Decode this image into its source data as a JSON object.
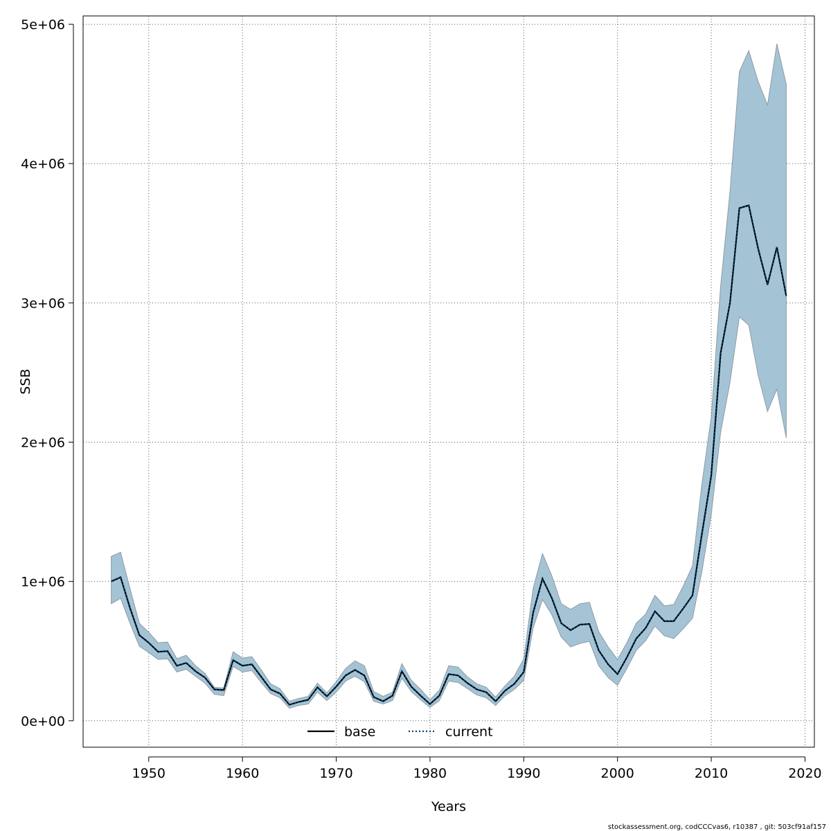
{
  "chart_data": {
    "type": "line",
    "xlabel": "Years",
    "ylabel": "SSB",
    "xlim": [
      1943,
      2021
    ],
    "ylim": [
      -190000,
      5060000
    ],
    "x_ticks": [
      1950,
      1960,
      1970,
      1980,
      1990,
      2000,
      2010,
      2020
    ],
    "x_tick_labels": [
      "1950",
      "1960",
      "1970",
      "1980",
      "1990",
      "2000",
      "2010",
      "2020"
    ],
    "y_ticks": [
      0,
      1000000,
      2000000,
      3000000,
      4000000,
      5000000
    ],
    "y_tick_labels": [
      "0e+00",
      "1e+06",
      "2e+06",
      "3e+06",
      "4e+06",
      "5e+06"
    ],
    "grid": true,
    "legend_position": "bottom-center",
    "colors": {
      "band": "#a4c4d6",
      "band_edge": "#8e9aa3",
      "base": "#000000",
      "current": "#08436e"
    },
    "years": [
      1946,
      1947,
      1948,
      1949,
      1950,
      1951,
      1952,
      1953,
      1954,
      1955,
      1956,
      1957,
      1958,
      1959,
      1960,
      1961,
      1962,
      1963,
      1964,
      1965,
      1966,
      1967,
      1968,
      1969,
      1970,
      1971,
      1972,
      1973,
      1974,
      1975,
      1976,
      1977,
      1978,
      1979,
      1980,
      1981,
      1982,
      1983,
      1984,
      1985,
      1986,
      1987,
      1988,
      1989,
      1990,
      1991,
      1992,
      1993,
      1994,
      1995,
      1996,
      1997,
      1998,
      1999,
      2000,
      2001,
      2002,
      2003,
      2004,
      2005,
      2006,
      2007,
      2008,
      2009,
      2010,
      2011,
      2012,
      2013,
      2014,
      2015,
      2016,
      2017,
      2018
    ],
    "series": [
      {
        "name": "base",
        "line_style": "solid",
        "values": [
          1000000,
          1030000,
          810000,
          615000,
          560000,
          495000,
          500000,
          395000,
          415000,
          355000,
          310000,
          225000,
          220000,
          435000,
          395000,
          405000,
          315000,
          225000,
          195000,
          115000,
          135000,
          150000,
          240000,
          175000,
          245000,
          325000,
          365000,
          325000,
          170000,
          140000,
          180000,
          355000,
          245000,
          180000,
          120000,
          180000,
          335000,
          325000,
          270000,
          225000,
          205000,
          140000,
          215000,
          265000,
          350000,
          775000,
          1020000,
          880000,
          700000,
          650000,
          690000,
          695000,
          505000,
          405000,
          335000,
          455000,
          590000,
          665000,
          785000,
          715000,
          715000,
          805000,
          900000,
          1340000,
          1760000,
          2640000,
          3000000,
          3680000,
          3700000,
          3390000,
          3130000,
          3400000,
          3050000
        ]
      },
      {
        "name": "current",
        "line_style": "dotted",
        "values": [
          1000000,
          1030000,
          810000,
          615000,
          560000,
          495000,
          500000,
          395000,
          415000,
          355000,
          310000,
          225000,
          220000,
          435000,
          395000,
          405000,
          315000,
          225000,
          195000,
          115000,
          135000,
          150000,
          240000,
          175000,
          245000,
          325000,
          365000,
          325000,
          170000,
          140000,
          180000,
          355000,
          245000,
          180000,
          120000,
          180000,
          335000,
          325000,
          270000,
          225000,
          205000,
          140000,
          215000,
          265000,
          350000,
          775000,
          1020000,
          880000,
          700000,
          650000,
          690000,
          695000,
          505000,
          405000,
          335000,
          455000,
          590000,
          665000,
          785000,
          715000,
          715000,
          805000,
          900000,
          1340000,
          1760000,
          2640000,
          3000000,
          3680000,
          3700000,
          3390000,
          3130000,
          3400000,
          3050000
        ]
      }
    ],
    "band": {
      "upper": [
        1180000,
        1210000,
        950000,
        700000,
        635000,
        560000,
        565000,
        445000,
        470000,
        395000,
        340000,
        240000,
        235000,
        495000,
        450000,
        460000,
        365000,
        265000,
        230000,
        140000,
        160000,
        175000,
        270000,
        200000,
        280000,
        375000,
        430000,
        395000,
        210000,
        175000,
        205000,
        410000,
        290000,
        225000,
        150000,
        220000,
        395000,
        385000,
        315000,
        265000,
        240000,
        170000,
        250000,
        320000,
        445000,
        950000,
        1200000,
        1040000,
        840000,
        800000,
        840000,
        850000,
        640000,
        530000,
        440000,
        560000,
        700000,
        765000,
        900000,
        825000,
        835000,
        965000,
        1110000,
        1700000,
        2180000,
        3120000,
        3800000,
        4660000,
        4810000,
        4590000,
        4420000,
        4860000,
        4570000
      ],
      "lower": [
        840000,
        880000,
        700000,
        535000,
        490000,
        440000,
        445000,
        350000,
        370000,
        320000,
        270000,
        190000,
        180000,
        390000,
        350000,
        360000,
        275000,
        195000,
        165000,
        90000,
        110000,
        120000,
        205000,
        145000,
        205000,
        285000,
        320000,
        280000,
        140000,
        120000,
        145000,
        305000,
        210000,
        150000,
        95000,
        145000,
        285000,
        275000,
        230000,
        185000,
        165000,
        110000,
        180000,
        225000,
        290000,
        665000,
        870000,
        760000,
        600000,
        530000,
        555000,
        570000,
        395000,
        310000,
        255000,
        375000,
        505000,
        575000,
        680000,
        610000,
        590000,
        660000,
        735000,
        1070000,
        1480000,
        2070000,
        2430000,
        2900000,
        2840000,
        2480000,
        2220000,
        2380000,
        2030000
      ]
    }
  },
  "footnote": "stockassessment.org, codCCCvas6, r10387 , git: 503cf91af157"
}
